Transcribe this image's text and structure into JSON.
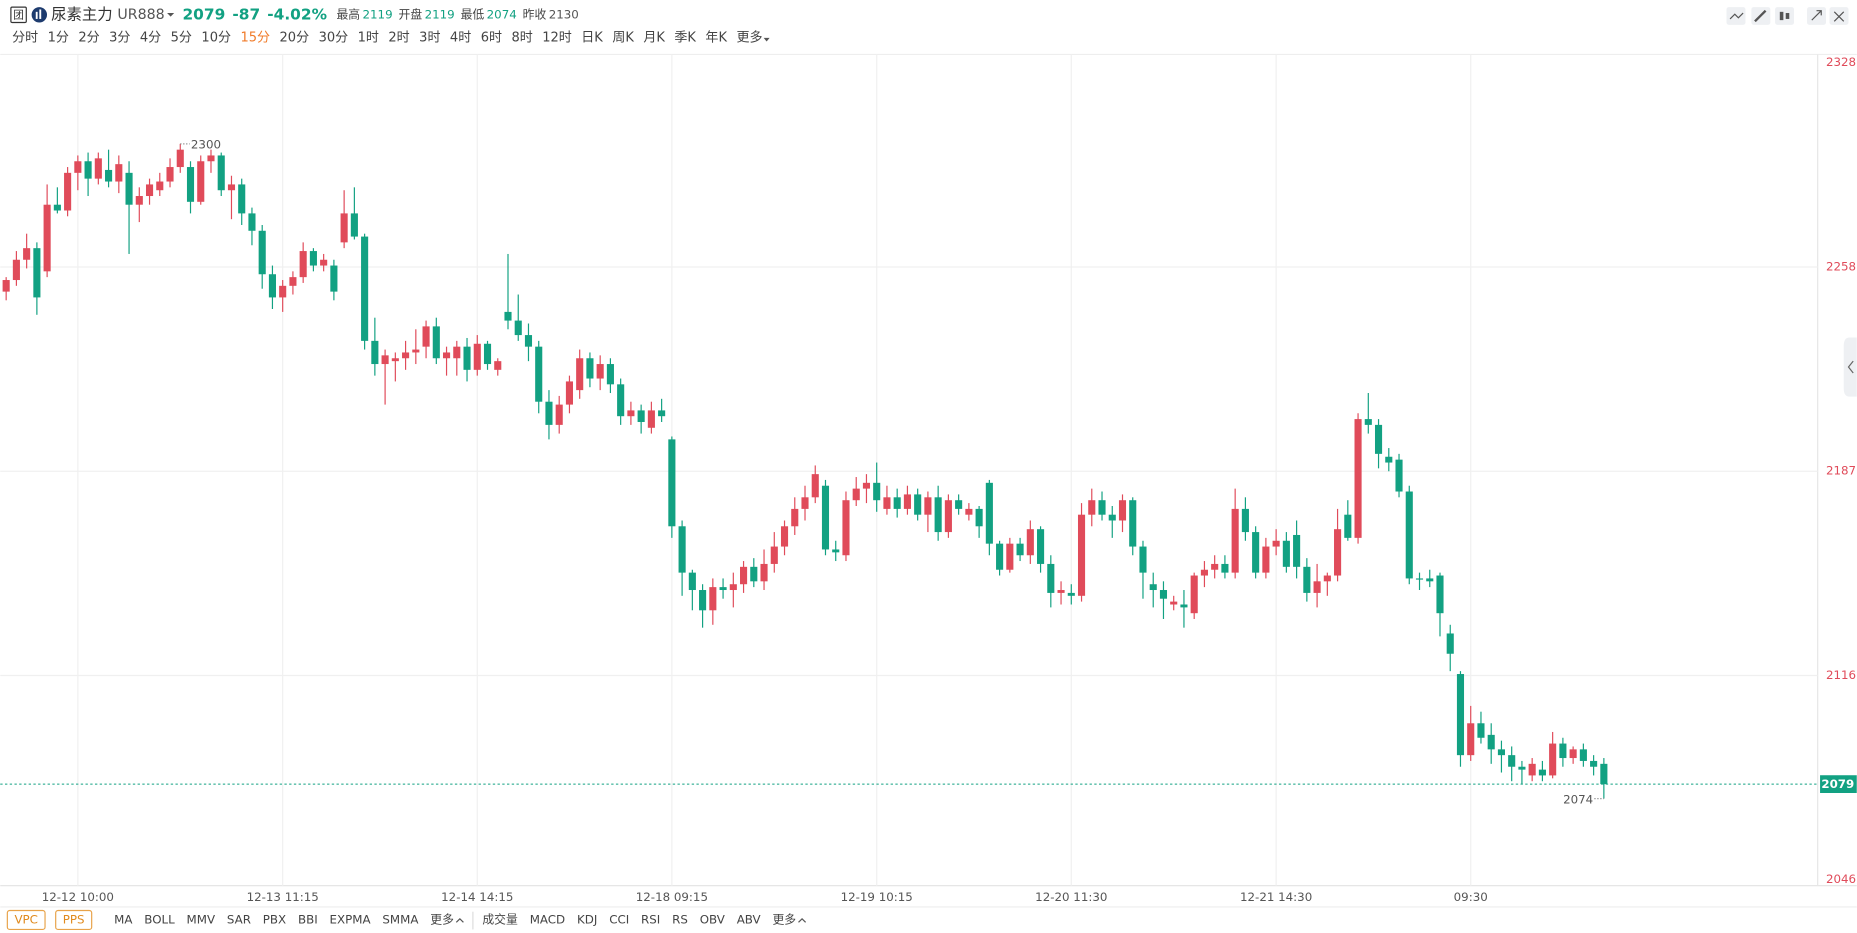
{
  "quote": {
    "name": "尿素主力",
    "code": "UR888",
    "last": 2079,
    "change": -87,
    "change_pct": {
      "value": -4.02,
      "label": "-4.02%"
    },
    "stats": [
      {
        "name": "最高",
        "value": 2119,
        "color": "#12a182"
      },
      {
        "name": "开盘",
        "value": 2119,
        "color": "#12a182"
      },
      {
        "name": "最低",
        "value": 2074,
        "color": "#12a182"
      },
      {
        "name": "昨收",
        "value": 2130,
        "color": "#555555"
      }
    ]
  },
  "periods": [
    "分时",
    "1分",
    "2分",
    "3分",
    "4分",
    "5分",
    "10分",
    "15分",
    "20分",
    "30分",
    "1时",
    "2时",
    "3时",
    "4时",
    "6时",
    "8时",
    "12时",
    "日K",
    "周K",
    "月K",
    "季K",
    "年K",
    "更多"
  ],
  "active_period_index": 7,
  "main_indicators": [
    "VPC",
    "PPS"
  ],
  "overlay_indicators": [
    "MA",
    "BOLL",
    "MMV",
    "SAR",
    "PBX",
    "BBI",
    "EXPMA",
    "SMMA",
    "更多"
  ],
  "sub_indicators": [
    "成交量",
    "MACD",
    "KDJ",
    "CCI",
    "RSI",
    "RS",
    "OBV",
    "ABV",
    "更多"
  ],
  "chart_data": {
    "type": "candlestick",
    "up_color": "#e04b5a",
    "down_color": "#12a182",
    "grid": true,
    "ylim": [
      2046,
      2328
    ],
    "yticks": [
      2046,
      {
        "value": 2116.5,
        "label": "2116"
      },
      2187,
      {
        "value": 2257.5,
        "label": "2258"
      },
      2328
    ],
    "categories": [
      null,
      null,
      null,
      null,
      null,
      null,
      null,
      "12-12 10:00",
      null,
      null,
      null,
      null,
      null,
      null,
      null,
      null,
      null,
      null,
      null,
      null,
      null,
      null,
      null,
      null,
      null,
      null,
      null,
      "12-13 11:15",
      null,
      null,
      null,
      null,
      null,
      null,
      null,
      null,
      null,
      null,
      null,
      null,
      null,
      null,
      null,
      null,
      null,
      null,
      "12-14 14:15",
      null,
      null,
      null,
      null,
      null,
      null,
      null,
      null,
      null,
      null,
      null,
      null,
      null,
      null,
      null,
      null,
      null,
      null,
      "12-18 09:15",
      null,
      null,
      null,
      null,
      null,
      null,
      null,
      null,
      null,
      null,
      null,
      null,
      null,
      null,
      null,
      null,
      null,
      null,
      null,
      "12-19 10:15",
      null,
      null,
      null,
      null,
      null,
      null,
      null,
      null,
      null,
      null,
      null,
      null,
      null,
      null,
      null,
      null,
      null,
      null,
      "12-20 11:30",
      null,
      null,
      null,
      null,
      null,
      null,
      null,
      null,
      null,
      null,
      null,
      null,
      null,
      null,
      null,
      null,
      null,
      null,
      null,
      "12-21 14:30",
      null,
      null,
      null,
      null,
      null,
      null,
      null,
      null,
      null,
      null,
      null,
      null,
      null,
      null,
      null,
      null,
      null,
      null,
      "09:30",
      null,
      null,
      null,
      null,
      null,
      null,
      null,
      null,
      null,
      null,
      null,
      null,
      null
    ],
    "candles": [
      [
        2249,
        2254,
        2246,
        2253
      ],
      [
        2253,
        2263,
        2251,
        2260
      ],
      [
        2260,
        2269,
        2257,
        2264
      ],
      [
        2264,
        2266,
        2241,
        2247
      ],
      [
        2256,
        2286,
        2254,
        2279
      ],
      [
        2279,
        2285,
        2276,
        2277
      ],
      [
        2277,
        2292,
        2275,
        2290
      ],
      [
        2290,
        2296,
        2284,
        2294
      ],
      [
        2294,
        2297,
        2282,
        2288
      ],
      [
        2288,
        2297,
        2286,
        2295
      ],
      [
        2291,
        2298,
        2285,
        2287
      ],
      [
        2287,
        2296,
        2283,
        2293
      ],
      [
        2290,
        2294,
        2262,
        2279
      ],
      [
        2279,
        2285,
        2273,
        2282
      ],
      [
        2282,
        2288,
        2279,
        2286
      ],
      [
        2284,
        2290,
        2282,
        2287
      ],
      [
        2287,
        2295,
        2285,
        2292
      ],
      [
        2292,
        2300,
        2290,
        2298
      ],
      [
        2292,
        2294,
        2276,
        2280
      ],
      [
        2280,
        2296,
        2279,
        2294
      ],
      [
        2294,
        2298,
        2290,
        2296
      ],
      [
        2296,
        2297,
        2282,
        2284
      ],
      [
        2284,
        2289,
        2274,
        2286
      ],
      [
        2286,
        2288,
        2272,
        2276
      ],
      [
        2276,
        2278,
        2265,
        2270
      ],
      [
        2270,
        2272,
        2250,
        2255
      ],
      [
        2255,
        2258,
        2243,
        2247
      ],
      [
        2247,
        2253,
        2242,
        2251
      ],
      [
        2251,
        2256,
        2248,
        2254
      ],
      [
        2254,
        2266,
        2252,
        2263
      ],
      [
        2263,
        2264,
        2256,
        2258
      ],
      [
        2258,
        2262,
        2256,
        2260
      ],
      [
        2258,
        2260,
        2246,
        2249
      ],
      [
        2266,
        2284,
        2264,
        2276
      ],
      [
        2276,
        2285,
        2267,
        2268
      ],
      [
        2268,
        2269,
        2229,
        2232
      ],
      [
        2232,
        2240,
        2220,
        2224
      ],
      [
        2224,
        2229,
        2210,
        2227
      ],
      [
        2225,
        2228,
        2218,
        2226
      ],
      [
        2226,
        2232,
        2222,
        2228
      ],
      [
        2228,
        2236,
        2224,
        2229
      ],
      [
        2230,
        2239,
        2226,
        2237
      ],
      [
        2237,
        2240,
        2224,
        2226
      ],
      [
        2226,
        2230,
        2220,
        2228
      ],
      [
        2226,
        2232,
        2220,
        2230
      ],
      [
        2230,
        2233,
        2218,
        2222
      ],
      [
        2222,
        2234,
        2220,
        2231
      ],
      [
        2231,
        2232,
        2222,
        2224
      ],
      [
        2222,
        2226,
        2220,
        2225
      ],
      [
        2242,
        2262,
        2236,
        2239
      ],
      [
        2239,
        2248,
        2232,
        2234
      ],
      [
        2234,
        2238,
        2225,
        2230
      ],
      [
        2230,
        2232,
        2207,
        2211
      ],
      [
        2211,
        2215,
        2198,
        2203
      ],
      [
        2203,
        2213,
        2200,
        2210
      ],
      [
        2210,
        2220,
        2207,
        2218
      ],
      [
        2215,
        2229,
        2212,
        2226
      ],
      [
        2226,
        2228,
        2216,
        2219
      ],
      [
        2219,
        2227,
        2215,
        2224
      ],
      [
        2224,
        2226,
        2214,
        2217
      ],
      [
        2217,
        2219,
        2203,
        2206
      ],
      [
        2206,
        2211,
        2203,
        2208
      ],
      [
        2208,
        2210,
        2200,
        2204
      ],
      [
        2202,
        2211,
        2200,
        2208
      ],
      [
        2208,
        2212,
        2204,
        2206
      ],
      [
        2198,
        2199,
        2164,
        2168
      ],
      [
        2168,
        2170,
        2144,
        2152
      ],
      [
        2152,
        2153,
        2139,
        2146
      ],
      [
        2146,
        2148,
        2133,
        2139
      ],
      [
        2139,
        2150,
        2134,
        2147
      ],
      [
        2147,
        2150,
        2143,
        2146
      ],
      [
        2146,
        2152,
        2140,
        2148
      ],
      [
        2148,
        2156,
        2145,
        2154
      ],
      [
        2154,
        2157,
        2147,
        2149
      ],
      [
        2149,
        2160,
        2146,
        2155
      ],
      [
        2155,
        2166,
        2152,
        2161
      ],
      [
        2161,
        2170,
        2158,
        2168
      ],
      [
        2168,
        2178,
        2165,
        2174
      ],
      [
        2174,
        2182,
        2170,
        2178
      ],
      [
        2178,
        2189,
        2176,
        2186
      ],
      [
        2182,
        2184,
        2158,
        2160
      ],
      [
        2160,
        2163,
        2156,
        2159
      ],
      [
        2158,
        2180,
        2156,
        2177
      ],
      [
        2177,
        2185,
        2175,
        2181
      ],
      [
        2181,
        2186,
        2176,
        2183
      ],
      [
        2183,
        2190,
        2173,
        2177
      ],
      [
        2174,
        2182,
        2172,
        2178
      ],
      [
        2178,
        2181,
        2171,
        2174
      ],
      [
        2174,
        2182,
        2172,
        2179
      ],
      [
        2179,
        2181,
        2170,
        2172
      ],
      [
        2172,
        2180,
        2166,
        2178
      ],
      [
        2178,
        2182,
        2163,
        2166
      ],
      [
        2166,
        2179,
        2164,
        2177
      ],
      [
        2177,
        2179,
        2172,
        2174
      ],
      [
        2172,
        2176,
        2170,
        2174
      ],
      [
        2174,
        2175,
        2164,
        2168
      ],
      [
        2183,
        2184,
        2158,
        2162
      ],
      [
        2162,
        2163,
        2151,
        2153
      ],
      [
        2153,
        2164,
        2152,
        2162
      ],
      [
        2162,
        2164,
        2156,
        2158
      ],
      [
        2158,
        2170,
        2155,
        2167
      ],
      [
        2167,
        2168,
        2152,
        2155
      ],
      [
        2155,
        2158,
        2140,
        2145
      ],
      [
        2145,
        2149,
        2141,
        2146
      ],
      [
        2145,
        2148,
        2141,
        2144
      ],
      [
        2144,
        2176,
        2142,
        2172
      ],
      [
        2172,
        2181,
        2168,
        2177
      ],
      [
        2177,
        2180,
        2170,
        2172
      ],
      [
        2172,
        2175,
        2164,
        2170
      ],
      [
        2170,
        2179,
        2166,
        2177
      ],
      [
        2177,
        2178,
        2158,
        2161
      ],
      [
        2161,
        2163,
        2143,
        2152
      ],
      [
        2148,
        2152,
        2140,
        2146
      ],
      [
        2146,
        2149,
        2136,
        2143
      ],
      [
        2141,
        2144,
        2139,
        2142
      ],
      [
        2141,
        2146,
        2133,
        2140
      ],
      [
        2138,
        2152,
        2136,
        2151
      ],
      [
        2151,
        2156,
        2147,
        2153
      ],
      [
        2153,
        2158,
        2150,
        2155
      ],
      [
        2155,
        2158,
        2150,
        2152
      ],
      [
        2152,
        2181,
        2150,
        2174
      ],
      [
        2174,
        2178,
        2163,
        2166
      ],
      [
        2166,
        2168,
        2150,
        2152
      ],
      [
        2152,
        2164,
        2150,
        2161
      ],
      [
        2161,
        2167,
        2158,
        2163
      ],
      [
        2163,
        2166,
        2152,
        2154
      ],
      [
        2165,
        2170,
        2150,
        2154
      ],
      [
        2154,
        2157,
        2142,
        2145
      ],
      [
        2145,
        2155,
        2140,
        2149
      ],
      [
        2149,
        2152,
        2144,
        2151
      ],
      [
        2151,
        2174,
        2149,
        2167
      ],
      [
        2172,
        2177,
        2163,
        2164
      ],
      [
        2164,
        2207,
        2162,
        2205
      ],
      [
        2205,
        2214,
        2200,
        2203
      ],
      [
        2203,
        2205,
        2188,
        2193
      ],
      [
        2192,
        2195,
        2187,
        2190
      ],
      [
        2191,
        2193,
        2178,
        2180
      ],
      [
        2180,
        2182,
        2148,
        2150
      ],
      [
        2150,
        2152,
        2146,
        2150
      ],
      [
        2150,
        2153,
        2147,
        2149
      ],
      [
        2151,
        2152,
        2130,
        2138
      ],
      [
        2131,
        2134,
        2118,
        2124
      ],
      [
        2117,
        2118,
        2085,
        2089
      ],
      [
        2089,
        2106,
        2087,
        2100
      ],
      [
        2100,
        2104,
        2093,
        2095
      ],
      [
        2096,
        2100,
        2086,
        2091
      ],
      [
        2091,
        2094,
        2083,
        2089
      ],
      [
        2089,
        2092,
        2080,
        2085
      ],
      [
        2085,
        2087,
        2079,
        2084
      ],
      [
        2082,
        2088,
        2080,
        2086
      ],
      [
        2084,
        2087,
        2080,
        2082
      ],
      [
        2082,
        2097,
        2081,
        2093
      ],
      [
        2093,
        2095,
        2085,
        2088
      ],
      [
        2088,
        2092,
        2086,
        2091
      ],
      [
        2091,
        2093,
        2085,
        2087
      ],
      [
        2087,
        2089,
        2082,
        2085
      ],
      [
        2086,
        2088,
        2074,
        2079
      ]
    ]
  }
}
